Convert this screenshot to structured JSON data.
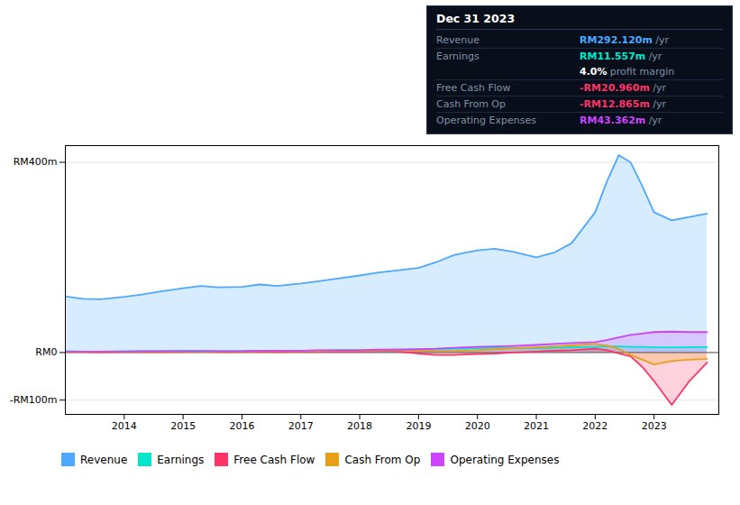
{
  "chart_data": {
    "type": "area",
    "x": [
      2013.0,
      2013.3,
      2013.6,
      2014.0,
      2014.3,
      2014.6,
      2015.0,
      2015.3,
      2015.6,
      2016.0,
      2016.3,
      2016.6,
      2017.0,
      2017.3,
      2017.6,
      2018.0,
      2018.3,
      2018.6,
      2019.0,
      2019.3,
      2019.6,
      2020.0,
      2020.3,
      2020.6,
      2021.0,
      2021.3,
      2021.6,
      2022.0,
      2022.2,
      2022.4,
      2022.6,
      2022.8,
      2023.0,
      2023.3,
      2023.6,
      2023.9
    ],
    "series": [
      {
        "name": "Revenue",
        "color": "#4da8ff",
        "values": [
          118,
          113,
          112,
          117,
          122,
          128,
          135,
          140,
          137,
          138,
          143,
          140,
          145,
          150,
          155,
          162,
          168,
          172,
          178,
          190,
          205,
          215,
          218,
          212,
          200,
          210,
          230,
          295,
          360,
          415,
          400,
          350,
          295,
          278,
          285,
          292
        ]
      },
      {
        "name": "Earnings",
        "color": "#00e5cc",
        "values": [
          3,
          2,
          2,
          3,
          3,
          3,
          4,
          4,
          3,
          3,
          4,
          3,
          4,
          4,
          5,
          5,
          5,
          6,
          6,
          7,
          8,
          9,
          10,
          10,
          9,
          10,
          11,
          12,
          13,
          13,
          12,
          12,
          11,
          11,
          11,
          11.5
        ]
      },
      {
        "name": "Free Cash Flow",
        "color": "#ff3366",
        "values": [
          1,
          1,
          0,
          1,
          1,
          1,
          1,
          2,
          1,
          1,
          2,
          1,
          2,
          2,
          2,
          2,
          3,
          3,
          -2,
          -5,
          -5,
          -3,
          -2,
          0,
          2,
          4,
          5,
          8,
          5,
          -2,
          -8,
          -30,
          -60,
          -110,
          -60,
          -21
        ]
      },
      {
        "name": "Cash From Op",
        "color": "#e6a017",
        "values": [
          1,
          1,
          1,
          1,
          2,
          2,
          2,
          2,
          2,
          2,
          3,
          3,
          3,
          3,
          4,
          4,
          4,
          5,
          4,
          3,
          3,
          5,
          7,
          9,
          11,
          13,
          15,
          18,
          15,
          8,
          -5,
          -15,
          -25,
          -18,
          -15,
          -13
        ]
      },
      {
        "name": "Operating Expenses",
        "color": "#cc44ff",
        "values": [
          2,
          2,
          2,
          2,
          3,
          3,
          3,
          3,
          3,
          3,
          4,
          4,
          4,
          5,
          5,
          5,
          6,
          6,
          7,
          8,
          10,
          12,
          13,
          14,
          16,
          18,
          20,
          22,
          26,
          32,
          37,
          40,
          43,
          44,
          43,
          43
        ]
      }
    ],
    "xlim": [
      2013.0,
      2024.1
    ],
    "ylim": [
      -130,
      435
    ],
    "xticks": [
      2014,
      2015,
      2016,
      2017,
      2018,
      2019,
      2020,
      2021,
      2022,
      2023
    ],
    "yticks": [
      {
        "value": 400,
        "label": "RM400m"
      },
      {
        "value": 0,
        "label": "RM0"
      },
      {
        "value": -100,
        "label": "-RM100m"
      }
    ],
    "grid": true,
    "legend": "bottom",
    "annotations": {
      "title": "Dec 31 2023",
      "rows": [
        {
          "label": "Revenue",
          "value": "RM292.120m",
          "unit": "/yr",
          "color": "#4da8ff"
        },
        {
          "label": "Earnings",
          "value": "RM11.557m",
          "unit": "/yr",
          "color": "#00e5cc"
        },
        {
          "value": "4.0%",
          "unit": "profit margin",
          "color": "#ffffff"
        },
        {
          "label": "Free Cash Flow",
          "value": "-RM20.960m",
          "unit": "/yr",
          "color": "#ff3366"
        },
        {
          "label": "Cash From Op",
          "value": "-RM12.865m",
          "unit": "/yr",
          "color": "#ff3366"
        },
        {
          "label": "Operating Expenses",
          "value": "RM43.362m",
          "unit": "/yr",
          "color": "#cc44ff"
        }
      ]
    }
  }
}
